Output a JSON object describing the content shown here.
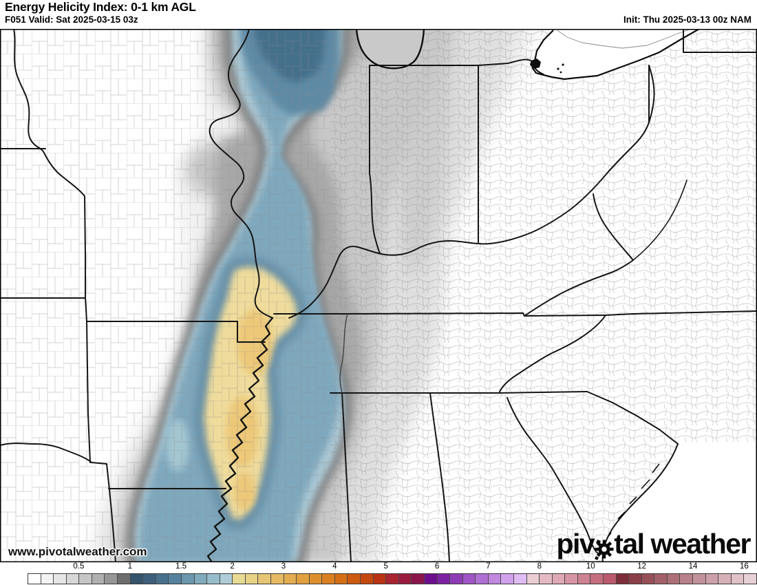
{
  "header": {
    "title": "Energy Helicity Index: 0-1 km AGL",
    "subtitle": "F051 Valid: Sat 2025-03-15 03z",
    "init": "Init: Thu 2025-03-13 00z NAM"
  },
  "watermark": "www.pivotalweather.com",
  "logo": {
    "part1": "piv",
    "part2": "tal",
    "part3": "weather",
    "gear_icon": "gear replaces letter o"
  },
  "map": {
    "region": "Central and Eastern United States with county boundaries",
    "palette": {
      "low_gray": "#f1f1f1",
      "mid_gray": "#c8c8c8",
      "dark_gray": "#a7a7a7",
      "blue_outer": "#abc8d4",
      "blue_mid": "#7fa8bd",
      "blue_deep": "#5e8aa5",
      "blue_core": "#44708c",
      "yellow": "#efdc9c",
      "gold": "#ecc878"
    }
  },
  "legend": {
    "ticks": [
      "0.5",
      "1",
      "1.5",
      "2",
      "3",
      "4",
      "5",
      "6",
      "7",
      "8",
      "10",
      "12",
      "14",
      "16"
    ],
    "colors": [
      "#ffffff",
      "#f3f3f3",
      "#e6e6e6",
      "#d8d8d8",
      "#c6c6c6",
      "#b0b0b0",
      "#969696",
      "#6e6e6e",
      "#34536d",
      "#3d5f7b",
      "#48708c",
      "#55839d",
      "#6997ad",
      "#80abbc",
      "#98bdca",
      "#afcdd6",
      "#e7db94",
      "#e7d286",
      "#e6c675",
      "#e5ba63",
      "#e3ad50",
      "#e19f3f",
      "#de902f",
      "#da8020",
      "#d56f15",
      "#cd5a0f",
      "#c4470e",
      "#b93312",
      "#a92331",
      "#9a1b3e",
      "#8b154a",
      "#6d0f8d",
      "#7d23a2",
      "#8e3cb5",
      "#9f55c5",
      "#b06fd3",
      "#c188e0",
      "#d1a2eb",
      "#e0bcf4",
      "#ebcdd4",
      "#e5bac4",
      "#dea8b4",
      "#d695a3",
      "#cd8292",
      "#c46e80",
      "#ba5a6e",
      "#7e2e3a",
      "#8b3e48",
      "#985058",
      "#a36068",
      "#ae7078",
      "#b9818a",
      "#c3919a",
      "#cda1a9",
      "#d6b1b8",
      "#dfc1c7",
      "#e8d1d6"
    ]
  }
}
